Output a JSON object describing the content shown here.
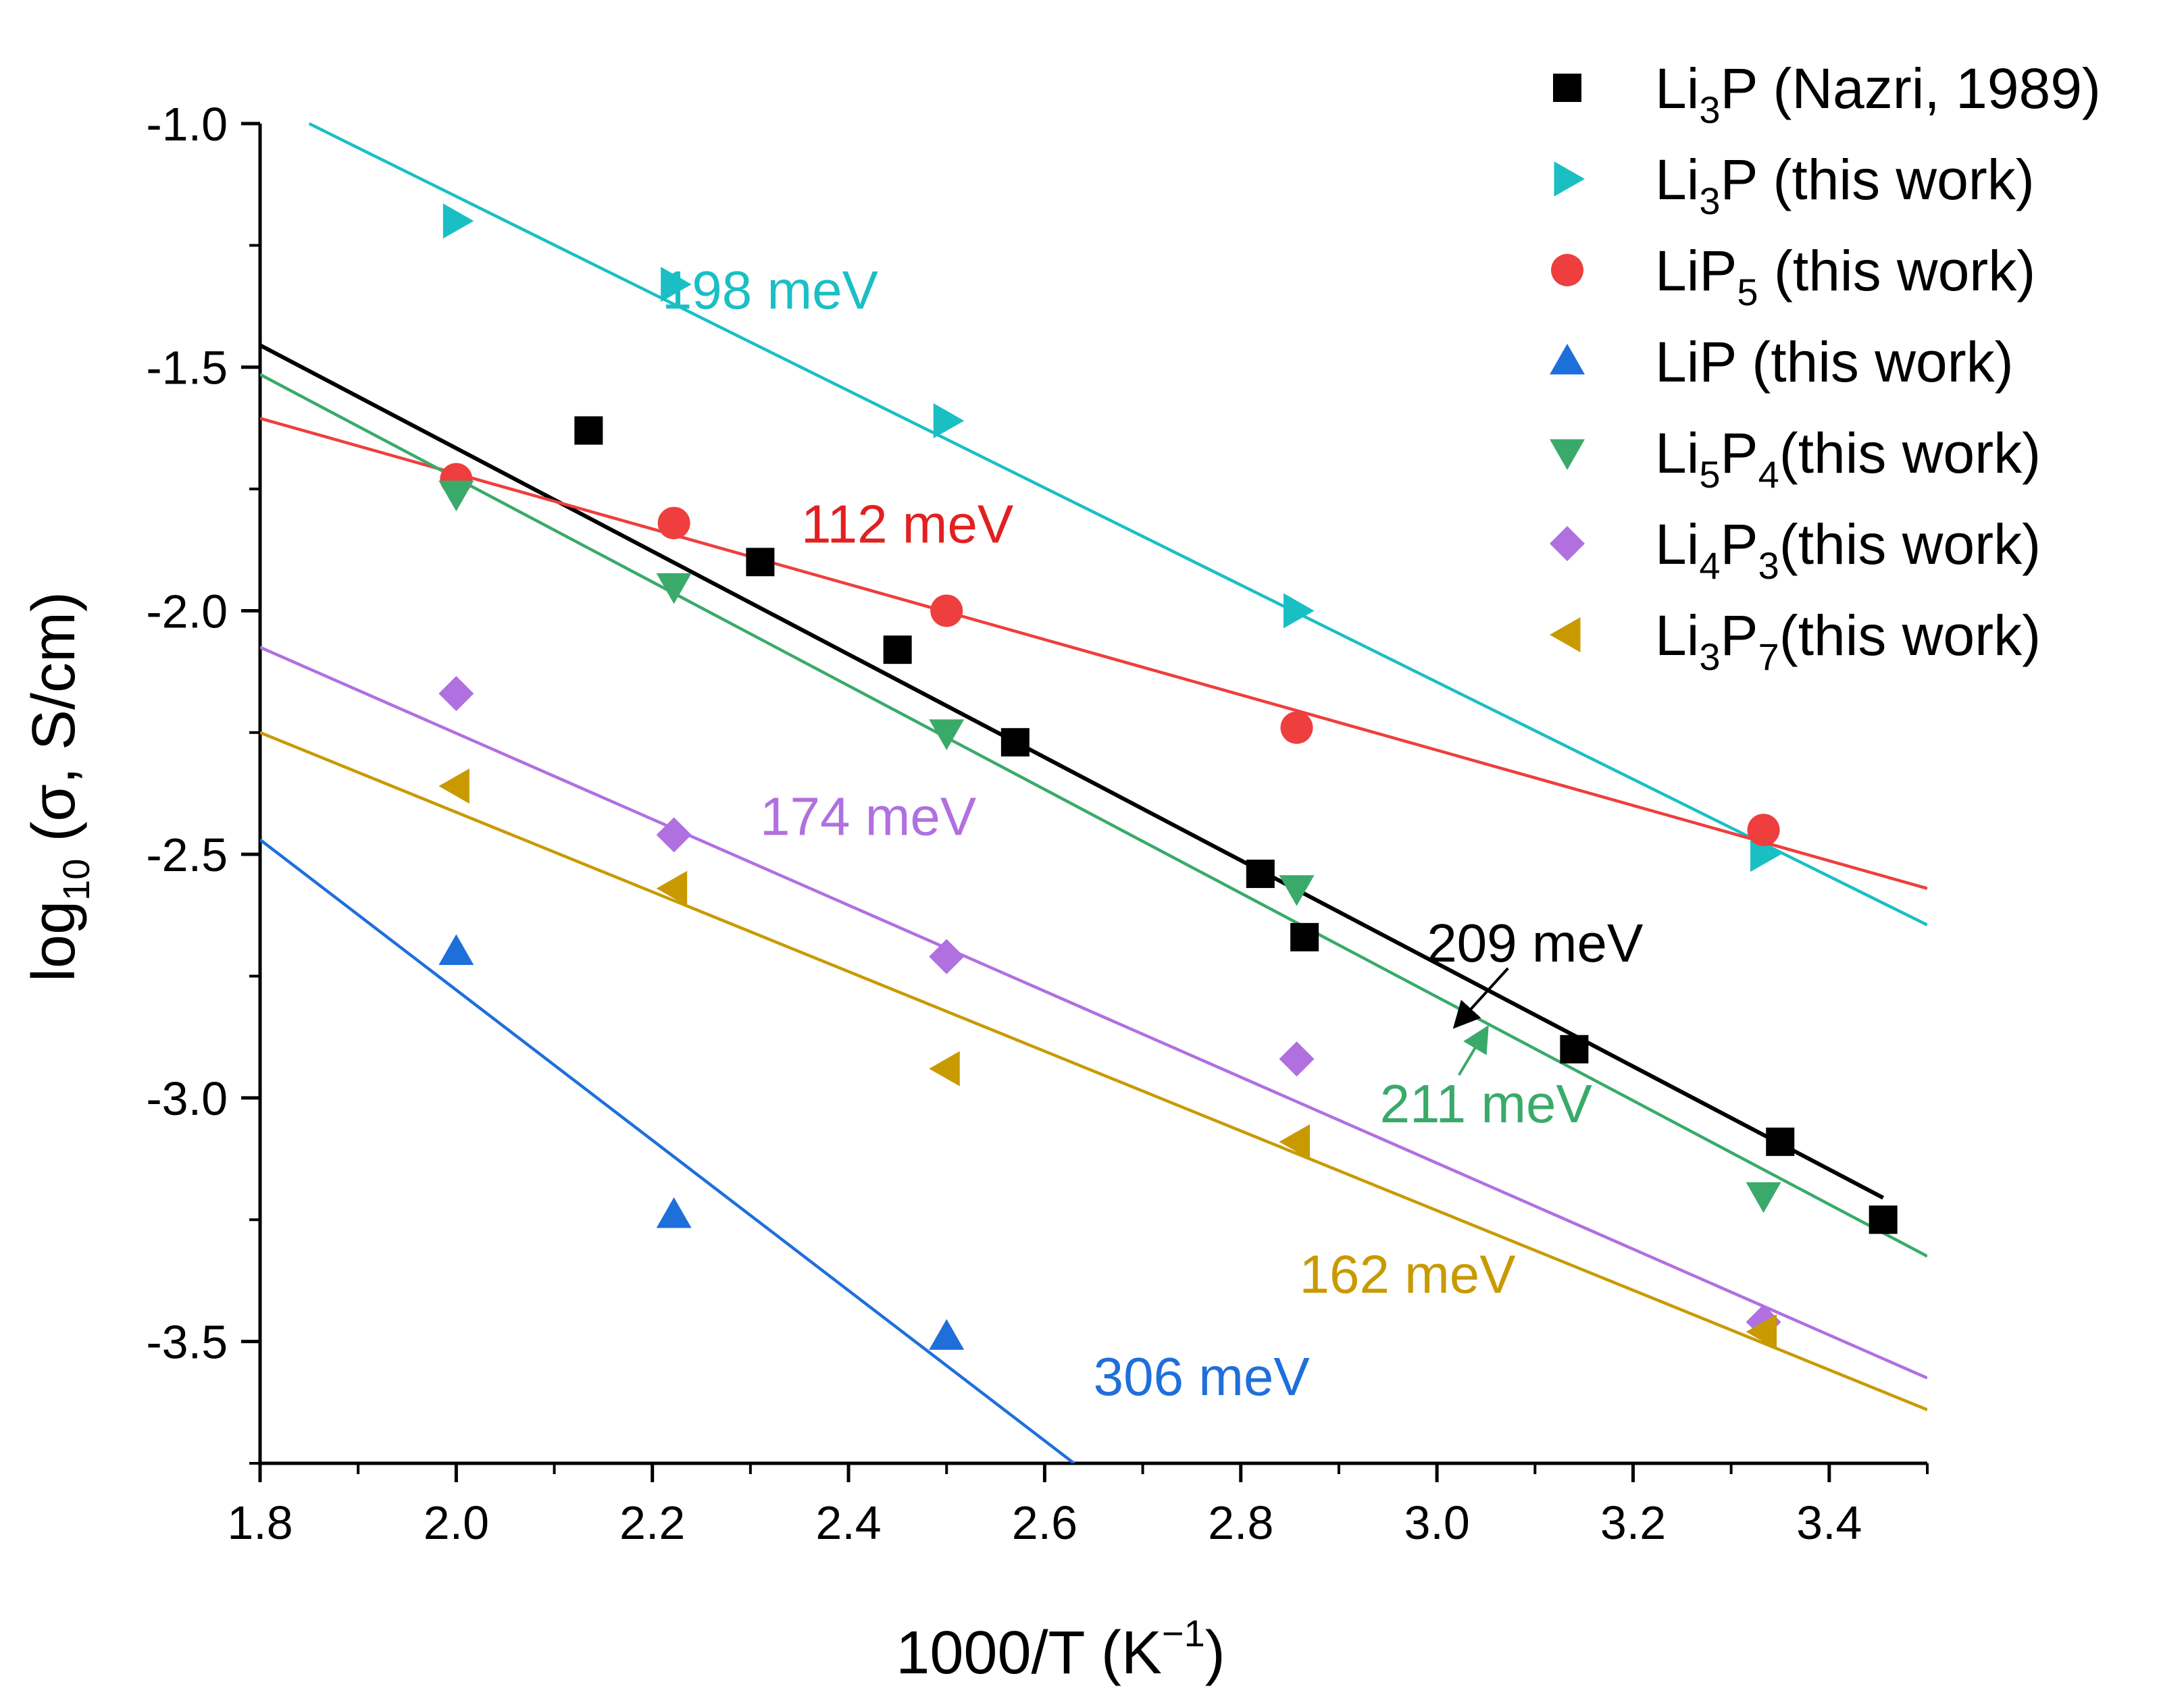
{
  "chart_data": {
    "type": "scatter",
    "title": "",
    "xlabel_main": "1000/T (K",
    "xlabel_sup": "−1",
    "xlabel_end": ")",
    "ylabel_main": "log",
    "ylabel_sub": "10",
    "ylabel_rest": " (σ, S/cm)",
    "xlim": [
      1.8,
      3.5
    ],
    "ylim": [
      -3.75,
      -1.0
    ],
    "x_ticks": [
      1.8,
      2.0,
      2.2,
      2.4,
      2.6,
      2.8,
      3.0,
      3.2,
      3.4
    ],
    "x_tick_labels": [
      "1.8",
      "2.0",
      "2.2",
      "2.4",
      "2.6",
      "2.8",
      "3.0",
      "3.2",
      "3.4"
    ],
    "y_ticks": [
      -1.0,
      -1.5,
      -2.0,
      -2.5,
      -3.0,
      -3.5
    ],
    "y_tick_labels": [
      "-1.0",
      "-1.5",
      "-2.0",
      "-2.5",
      "-3.0",
      "-3.5"
    ],
    "x_minor_step": 0.1,
    "y_minor_step": 0.25,
    "grid": false,
    "legend_position": "top-right",
    "series": [
      {
        "id": "nazri",
        "legend_parts": [
          "Li",
          "3",
          "P",
          "",
          "  (Nazri, 1989)"
        ],
        "marker": "square",
        "color": "#000000",
        "line_color": "#000000",
        "x": [
          2.135,
          2.31,
          2.45,
          2.57,
          2.82,
          2.865,
          3.14,
          3.35,
          3.455
        ],
        "y": [
          -1.63,
          -1.9,
          -2.08,
          -2.27,
          -2.54,
          -2.67,
          -2.9,
          -3.09,
          -3.25
        ],
        "fit": {
          "x": [
            1.8,
            3.455
          ],
          "y": [
            -1.455,
            -3.205
          ]
        },
        "activation_energy": "209 meV"
      },
      {
        "id": "li3p",
        "legend_parts": [
          "Li",
          "3",
          "P",
          "",
          "  (this work)"
        ],
        "marker": "triangle-right",
        "color": "#1ABFC4",
        "line_color": "#1ABFC4",
        "x": [
          2.0,
          2.222,
          2.5,
          2.857,
          3.333
        ],
        "y": [
          -1.2,
          -1.33,
          -1.61,
          -2.0,
          -2.5
        ],
        "fit": {
          "x": [
            1.85,
            3.5
          ],
          "y": [
            -1.0,
            -2.645
          ]
        },
        "activation_energy": "198 meV"
      },
      {
        "id": "lip5",
        "legend_parts": [
          "LiP",
          "5",
          "",
          "",
          "  (this work)"
        ],
        "marker": "circle",
        "color": "#EE3E3E",
        "line_color": "#EE3E3E",
        "x": [
          2.0,
          2.222,
          2.5,
          2.857,
          3.333
        ],
        "y": [
          -1.73,
          -1.82,
          -2.0,
          -2.24,
          -2.45
        ],
        "fit": {
          "x": [
            1.8,
            3.5
          ],
          "y": [
            -1.605,
            -2.57
          ]
        },
        "activation_energy": "112 meV"
      },
      {
        "id": "lip",
        "legend_parts": [
          "LiP",
          "",
          "",
          "",
          "   (this work)"
        ],
        "marker": "triangle-up",
        "color": "#1F6FDB",
        "line_color": "#1F6FDB",
        "x": [
          2.0,
          2.222,
          2.5
        ],
        "y": [
          -2.7,
          -3.24,
          -3.49
        ],
        "fit": {
          "x": [
            1.8,
            2.63
          ],
          "y": [
            -2.47,
            -3.75
          ]
        },
        "activation_energy": "306 meV"
      },
      {
        "id": "li5p4",
        "legend_parts": [
          "Li",
          "5",
          "P",
          "4",
          "(this work)"
        ],
        "marker": "triangle-down",
        "color": "#3AAA6A",
        "line_color": "#3AAA6A",
        "x": [
          2.0,
          2.222,
          2.5,
          2.857,
          3.333
        ],
        "y": [
          -1.76,
          -1.95,
          -2.25,
          -2.57,
          -3.2
        ],
        "fit": {
          "x": [
            1.8,
            3.5
          ],
          "y": [
            -1.515,
            -3.325
          ]
        },
        "activation_energy": "211 meV"
      },
      {
        "id": "li4p3",
        "legend_parts": [
          "Li",
          "4",
          "P",
          "3",
          "(this work)"
        ],
        "marker": "diamond",
        "color": "#B070E0",
        "line_color": "#B070E0",
        "x": [
          2.0,
          2.222,
          2.5,
          2.857,
          3.333
        ],
        "y": [
          -2.17,
          -2.46,
          -2.71,
          -2.92,
          -3.46
        ],
        "fit": {
          "x": [
            1.8,
            3.5
          ],
          "y": [
            -2.075,
            -3.575
          ]
        },
        "activation_energy": "174 meV"
      },
      {
        "id": "li3p7",
        "legend_parts": [
          "Li",
          "3",
          "P",
          "7",
          "(this work)"
        ],
        "marker": "triangle-left",
        "color": "#C89A00",
        "line_color": "#C89A00",
        "x": [
          2.0,
          2.222,
          2.5,
          2.857,
          3.333
        ],
        "y": [
          -2.36,
          -2.57,
          -2.94,
          -3.09,
          -3.48
        ],
        "fit": {
          "x": [
            1.8,
            3.5
          ],
          "y": [
            -2.25,
            -3.64
          ]
        },
        "activation_energy": "162 meV"
      }
    ],
    "annotations": [
      {
        "series": "li3p",
        "text": "198 meV",
        "x": 2.32,
        "y": -1.38,
        "color": "#1ABFC4"
      },
      {
        "series": "lip5",
        "text": "112 meV",
        "x": 2.46,
        "y": -1.86,
        "color": "#E22020"
      },
      {
        "series": "li4p3",
        "text": "174 meV",
        "x": 2.42,
        "y": -2.46,
        "color": "#B070E0"
      },
      {
        "series": "nazri",
        "text": "209 meV",
        "x": 3.1,
        "y": -2.72,
        "color": "#000000",
        "arrow_to": [
          3.02,
          -2.85
        ]
      },
      {
        "series": "li5p4",
        "text": "211 meV",
        "x": 3.05,
        "y": -3.05,
        "color": "#3AAA6A",
        "arrow_to": [
          3.05,
          -2.86
        ]
      },
      {
        "series": "li3p7",
        "text": "162 meV",
        "x": 2.97,
        "y": -3.4,
        "color": "#C89A00"
      },
      {
        "series": "lip",
        "text": "306 meV",
        "x": 2.76,
        "y": -3.61,
        "color": "#1F6FDB"
      }
    ]
  }
}
